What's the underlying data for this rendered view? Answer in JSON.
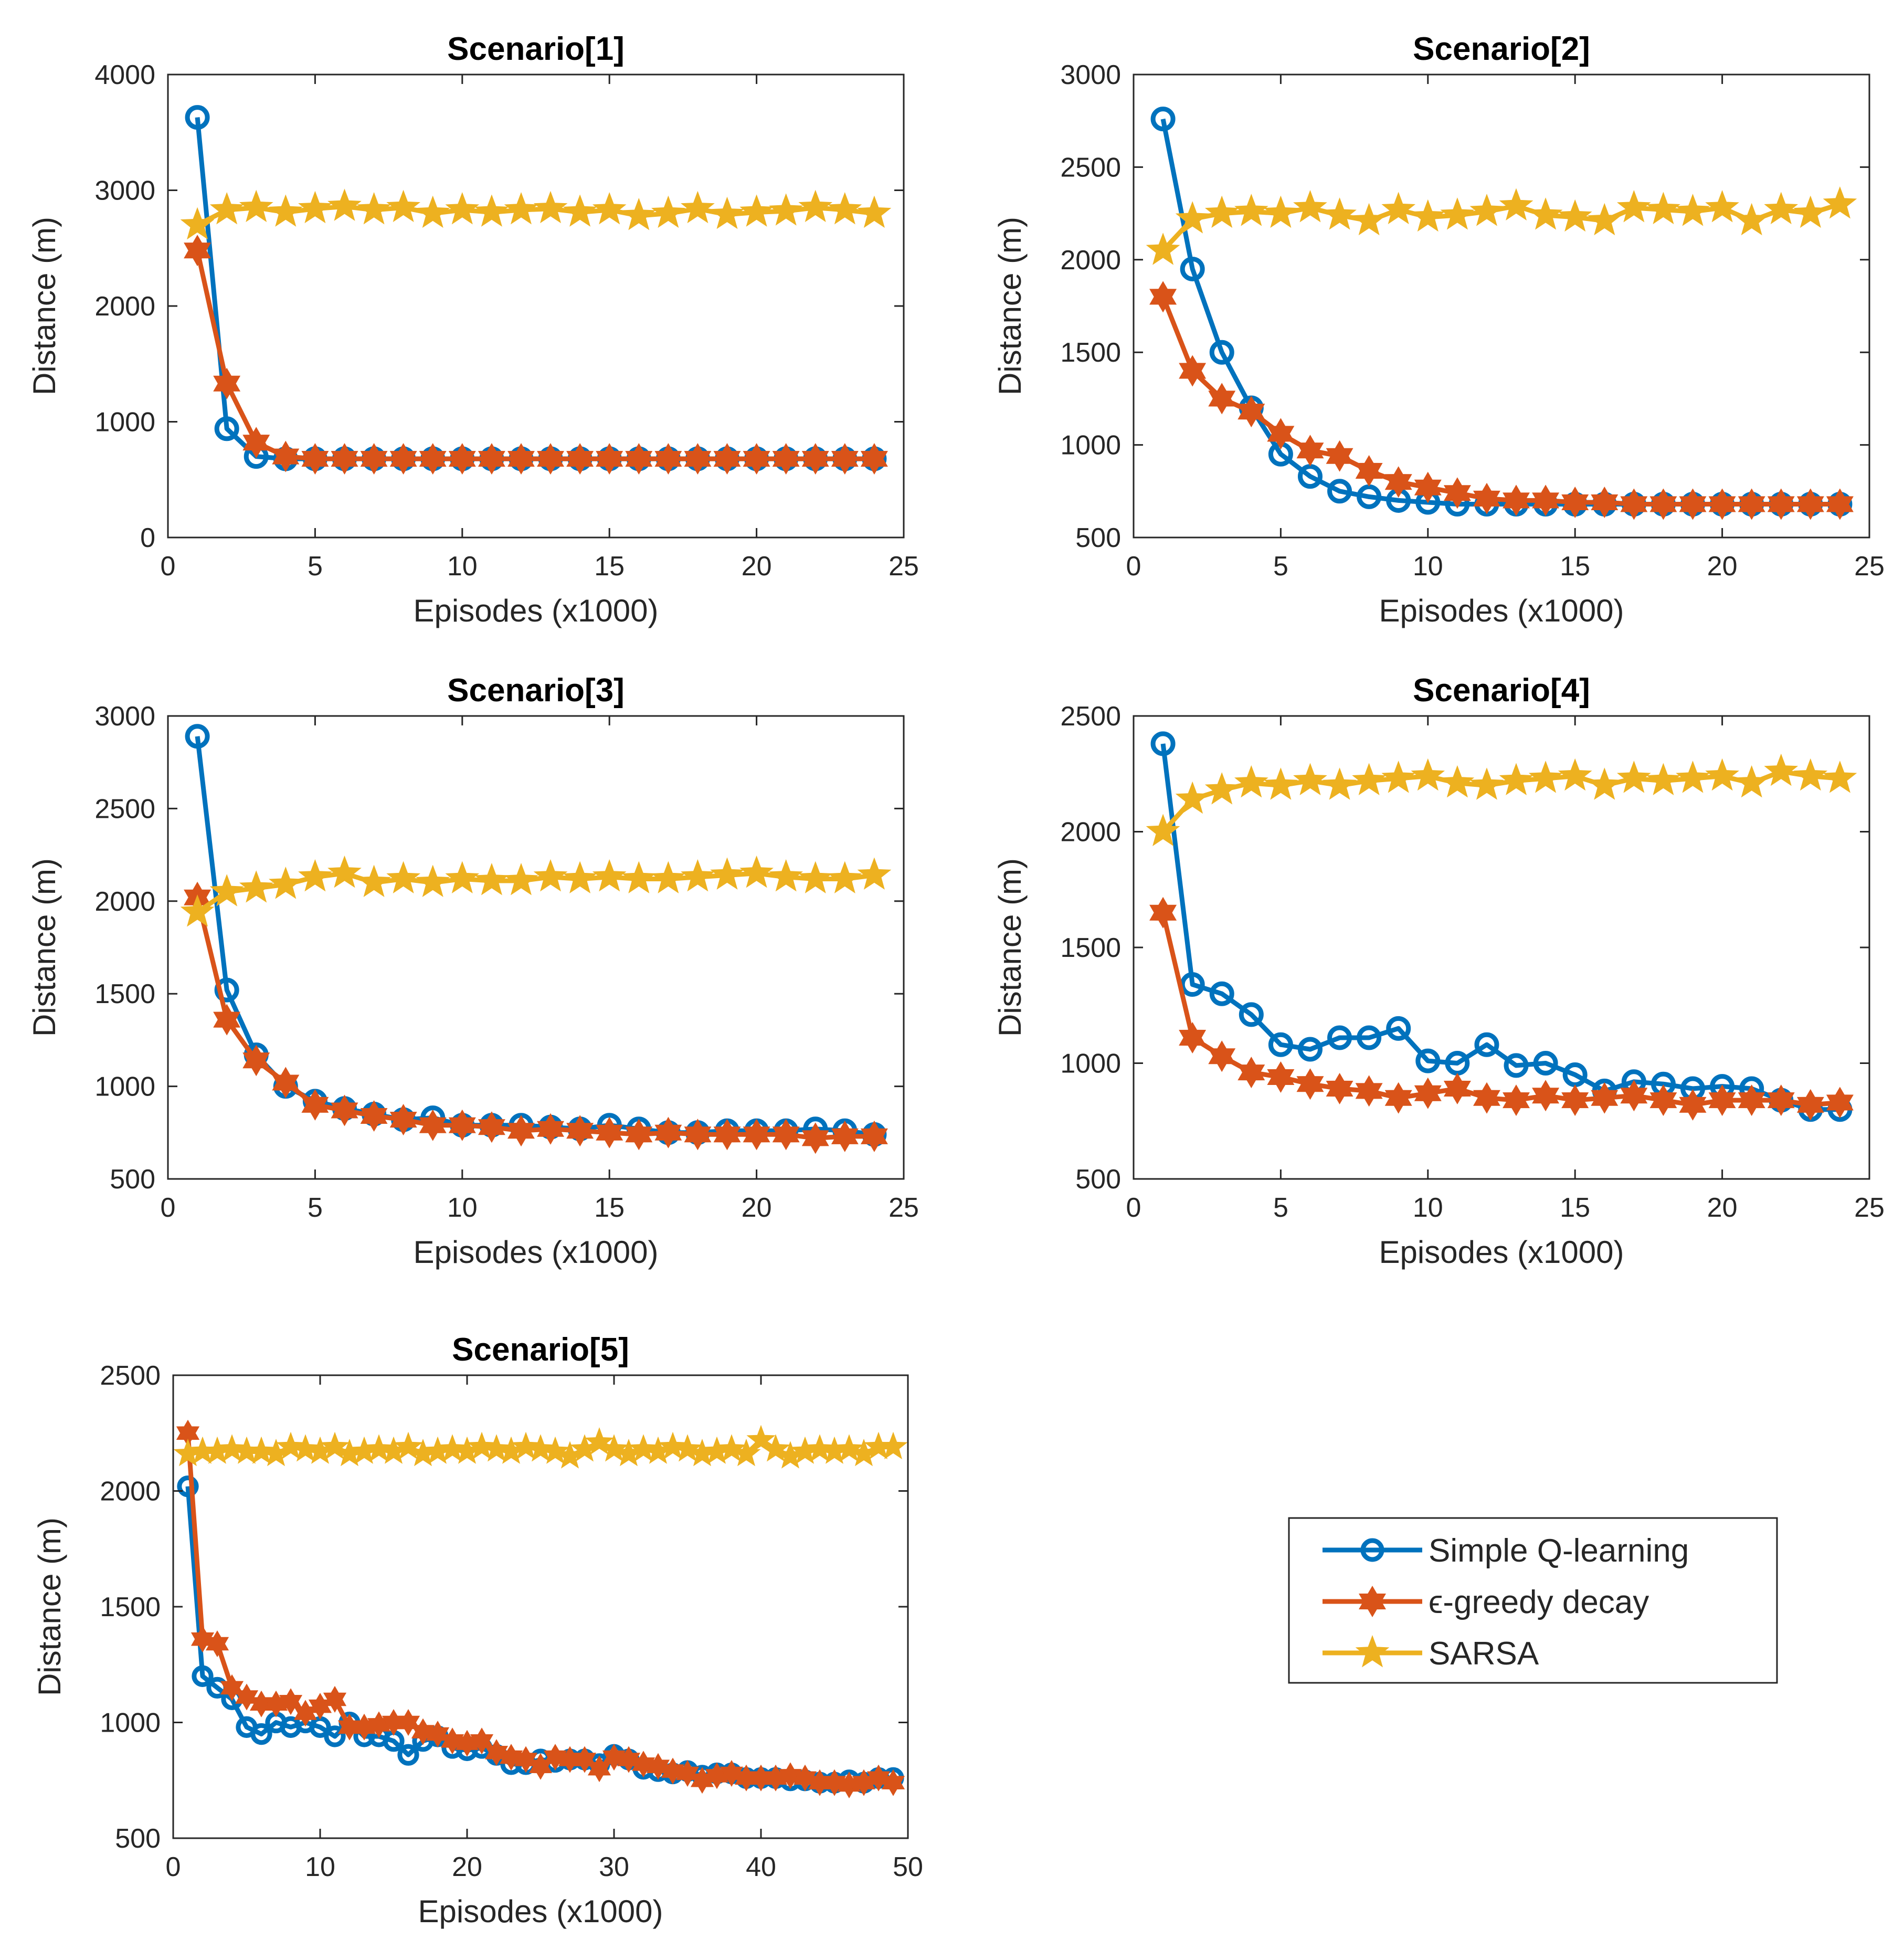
{
  "chart_data": [
    {
      "type": "line",
      "title": "Scenario[1]",
      "xlabel": "Episodes (x1000)",
      "ylabel": "Distance (m)",
      "xlim": [
        0,
        25
      ],
      "ylim": [
        0,
        4000
      ],
      "xticks": [
        0,
        5,
        10,
        15,
        20,
        25
      ],
      "yticks": [
        0,
        1000,
        2000,
        3000,
        4000
      ],
      "x": [
        1,
        2,
        3,
        4,
        5,
        6,
        7,
        8,
        9,
        10,
        11,
        12,
        13,
        14,
        15,
        16,
        17,
        18,
        19,
        20,
        21,
        22,
        23,
        24
      ],
      "series": [
        {
          "name": "Simple Q-learning",
          "values": [
            3630,
            940,
            700,
            680,
            680,
            680,
            680,
            680,
            680,
            680,
            680,
            680,
            680,
            680,
            680,
            680,
            680,
            680,
            680,
            680,
            680,
            680,
            680,
            680
          ]
        },
        {
          "name": "ε-greedy decay",
          "values": [
            2480,
            1330,
            820,
            700,
            680,
            680,
            680,
            680,
            680,
            680,
            680,
            680,
            680,
            680,
            680,
            680,
            680,
            680,
            680,
            680,
            680,
            680,
            680,
            680
          ]
        },
        {
          "name": "SARSA",
          "values": [
            2700,
            2830,
            2850,
            2810,
            2840,
            2860,
            2830,
            2850,
            2800,
            2830,
            2810,
            2830,
            2840,
            2810,
            2830,
            2780,
            2800,
            2840,
            2790,
            2810,
            2820,
            2850,
            2830,
            2800
          ]
        }
      ]
    },
    {
      "type": "line",
      "title": "Scenario[2]",
      "xlabel": "Episodes (x1000)",
      "ylabel": "Distance (m)",
      "xlim": [
        0,
        25
      ],
      "ylim": [
        500,
        3000
      ],
      "xticks": [
        0,
        5,
        10,
        15,
        20,
        25
      ],
      "yticks": [
        500,
        1000,
        1500,
        2000,
        2500,
        3000
      ],
      "x": [
        1,
        2,
        3,
        4,
        5,
        6,
        7,
        8,
        9,
        10,
        11,
        12,
        13,
        14,
        15,
        16,
        17,
        18,
        19,
        20,
        21,
        22,
        23,
        24
      ],
      "series": [
        {
          "name": "Simple Q-learning",
          "values": [
            2760,
            1950,
            1500,
            1200,
            950,
            830,
            750,
            720,
            700,
            690,
            680,
            680,
            680,
            680,
            680,
            680,
            680,
            680,
            680,
            680,
            680,
            680,
            680,
            680
          ]
        },
        {
          "name": "ε-greedy decay",
          "values": [
            1800,
            1400,
            1250,
            1180,
            1060,
            970,
            940,
            860,
            800,
            770,
            740,
            710,
            700,
            700,
            690,
            690,
            680,
            680,
            680,
            680,
            680,
            680,
            680,
            680
          ]
        },
        {
          "name": "SARSA",
          "values": [
            2050,
            2220,
            2250,
            2260,
            2250,
            2280,
            2240,
            2210,
            2270,
            2230,
            2240,
            2260,
            2290,
            2240,
            2230,
            2210,
            2280,
            2270,
            2260,
            2280,
            2210,
            2270,
            2250,
            2300
          ]
        }
      ]
    },
    {
      "type": "line",
      "title": "Scenario[3]",
      "xlabel": "Episodes (x1000)",
      "ylabel": "Distance (m)",
      "xlim": [
        0,
        25
      ],
      "ylim": [
        500,
        3000
      ],
      "xticks": [
        0,
        5,
        10,
        15,
        20,
        25
      ],
      "yticks": [
        500,
        1000,
        1500,
        2000,
        2500,
        3000
      ],
      "x": [
        1,
        2,
        3,
        4,
        5,
        6,
        7,
        8,
        9,
        10,
        11,
        12,
        13,
        14,
        15,
        16,
        17,
        18,
        19,
        20,
        21,
        22,
        23,
        24
      ],
      "series": [
        {
          "name": "Simple Q-learning",
          "values": [
            2890,
            1520,
            1170,
            1000,
            920,
            880,
            850,
            820,
            830,
            790,
            790,
            790,
            780,
            770,
            790,
            770,
            750,
            750,
            760,
            760,
            760,
            770,
            760,
            740
          ]
        },
        {
          "name": "ε-greedy decay",
          "values": [
            2020,
            1360,
            1140,
            1020,
            900,
            870,
            840,
            820,
            790,
            790,
            780,
            760,
            770,
            760,
            750,
            740,
            750,
            740,
            740,
            740,
            740,
            720,
            730,
            730
          ]
        },
        {
          "name": "SARSA",
          "values": [
            1940,
            2050,
            2070,
            2090,
            2130,
            2150,
            2100,
            2120,
            2100,
            2120,
            2110,
            2110,
            2130,
            2120,
            2130,
            2120,
            2120,
            2130,
            2140,
            2150,
            2130,
            2120,
            2120,
            2140
          ]
        }
      ]
    },
    {
      "type": "line",
      "title": "Scenario[4]",
      "xlabel": "Episodes (x1000)",
      "ylabel": "Distance (m)",
      "xlim": [
        0,
        25
      ],
      "ylim": [
        500,
        2500
      ],
      "xticks": [
        0,
        5,
        10,
        15,
        20,
        25
      ],
      "yticks": [
        500,
        1000,
        1500,
        2000,
        2500
      ],
      "x": [
        1,
        2,
        3,
        4,
        5,
        6,
        7,
        8,
        9,
        10,
        11,
        12,
        13,
        14,
        15,
        16,
        17,
        18,
        19,
        20,
        21,
        22,
        23,
        24
      ],
      "series": [
        {
          "name": "Simple Q-learning",
          "values": [
            2380,
            1340,
            1300,
            1210,
            1080,
            1060,
            1110,
            1110,
            1150,
            1010,
            1000,
            1080,
            990,
            1000,
            950,
            880,
            920,
            910,
            890,
            900,
            890,
            840,
            800,
            800
          ]
        },
        {
          "name": "ε-greedy decay",
          "values": [
            1650,
            1110,
            1030,
            960,
            940,
            910,
            890,
            880,
            850,
            870,
            890,
            850,
            840,
            860,
            840,
            850,
            860,
            840,
            820,
            840,
            840,
            840,
            820,
            830
          ]
        },
        {
          "name": "SARSA",
          "values": [
            2000,
            2140,
            2180,
            2210,
            2200,
            2220,
            2200,
            2220,
            2230,
            2240,
            2210,
            2200,
            2220,
            2230,
            2240,
            2200,
            2230,
            2220,
            2230,
            2240,
            2210,
            2260,
            2240,
            2230
          ]
        }
      ]
    },
    {
      "type": "line",
      "title": "Scenario[5]",
      "xlabel": "Episodes (x1000)",
      "ylabel": "Distance (m)",
      "xlim": [
        0,
        50
      ],
      "ylim": [
        500,
        2500
      ],
      "xticks": [
        0,
        10,
        20,
        30,
        40,
        50
      ],
      "yticks": [
        500,
        1000,
        1500,
        2000,
        2500
      ],
      "x": [
        1,
        2,
        3,
        4,
        5,
        6,
        7,
        8,
        9,
        10,
        11,
        12,
        13,
        14,
        15,
        16,
        17,
        18,
        19,
        20,
        21,
        22,
        23,
        24,
        25,
        26,
        27,
        28,
        29,
        30,
        31,
        32,
        33,
        34,
        35,
        36,
        37,
        38,
        39,
        40,
        41,
        42,
        43,
        44,
        45,
        46,
        47,
        48,
        49
      ],
      "series": [
        {
          "name": "Simple Q-learning",
          "values": [
            2020,
            1200,
            1150,
            1100,
            980,
            950,
            1000,
            980,
            1000,
            980,
            940,
            1000,
            940,
            940,
            920,
            860,
            920,
            940,
            890,
            880,
            890,
            860,
            820,
            820,
            840,
            830,
            840,
            840,
            820,
            860,
            840,
            800,
            790,
            780,
            790,
            770,
            780,
            780,
            760,
            760,
            760,
            750,
            750,
            740,
            740,
            750,
            740,
            760,
            760
          ]
        },
        {
          "name": "ε-greedy decay",
          "values": [
            2250,
            1360,
            1340,
            1150,
            1110,
            1080,
            1080,
            1090,
            1040,
            1070,
            1100,
            980,
            980,
            990,
            1000,
            1000,
            960,
            950,
            920,
            910,
            920,
            870,
            850,
            840,
            810,
            850,
            840,
            840,
            800,
            850,
            840,
            820,
            810,
            790,
            780,
            750,
            770,
            780,
            760,
            760,
            760,
            770,
            760,
            740,
            740,
            730,
            740,
            760,
            740
          ]
        },
        {
          "name": "SARSA",
          "values": [
            2160,
            2170,
            2170,
            2180,
            2170,
            2170,
            2160,
            2190,
            2180,
            2170,
            2190,
            2160,
            2170,
            2180,
            2170,
            2190,
            2160,
            2170,
            2180,
            2170,
            2190,
            2180,
            2170,
            2190,
            2180,
            2170,
            2150,
            2180,
            2210,
            2180,
            2160,
            2180,
            2170,
            2190,
            2180,
            2160,
            2170,
            2180,
            2160,
            2220,
            2180,
            2150,
            2170,
            2180,
            2170,
            2180,
            2160,
            2190,
            2190
          ]
        }
      ]
    }
  ],
  "legend": {
    "entries": [
      {
        "label": "Simple Q-learning",
        "marker": "circle",
        "color": "#0072BD"
      },
      {
        "label": "ϵ-greedy decay",
        "marker": "hexagram",
        "color": "#D95319"
      },
      {
        "label": "SARSA",
        "marker": "pentagram",
        "color": "#EDB120"
      }
    ]
  },
  "colors": {
    "simple_q_learning": "#0072BD",
    "epsilon_greedy_decay": "#D95319",
    "sarsa": "#EDB120",
    "axes": "#262626"
  }
}
